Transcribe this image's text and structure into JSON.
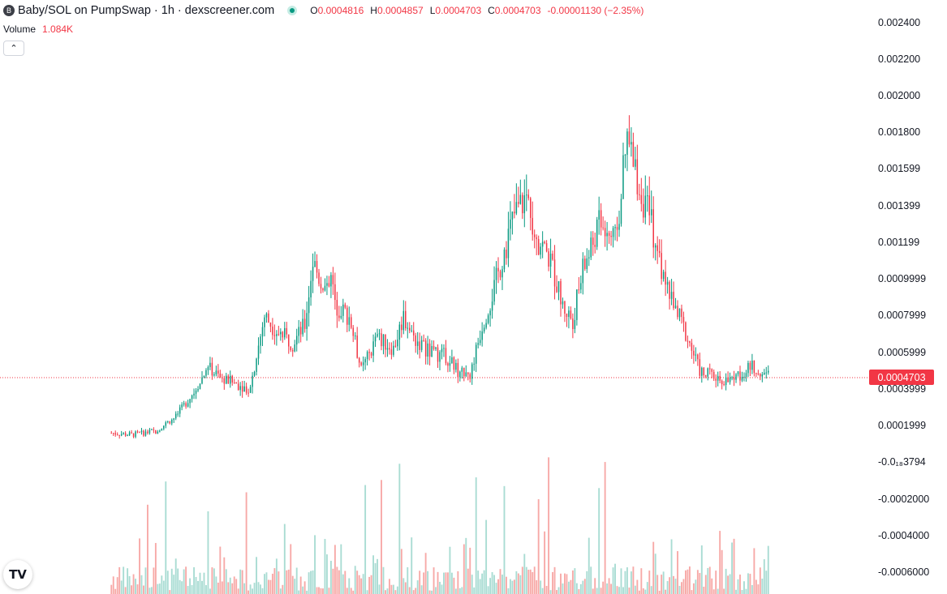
{
  "header": {
    "logo_letter": "B",
    "title": "Baby/SOL on PumpSwap · 1h · dexscreener.com",
    "ohlc": {
      "open_key": "O",
      "open": "0.0004816",
      "high_key": "H",
      "high": "0.0004857",
      "low_key": "L",
      "low": "0.0004703",
      "close_key": "C",
      "close": "0.0004703",
      "change": "-0.00001130 (−2.35%)"
    }
  },
  "volume": {
    "label": "Volume",
    "value": "1.084K"
  },
  "collapse_button": {
    "icon": "chevron-up-icon",
    "glyph": "⌃"
  },
  "price_axis": {
    "labels": [
      "0.002400",
      "0.002200",
      "0.002000",
      "0.001800",
      "0.001599",
      "0.001399",
      "0.001199",
      "0.0009999",
      "0.0007999",
      "0.0005999",
      "0.0003999",
      "0.0001999",
      "-0.0₁₈3794",
      "-0.0002000",
      "-0.0004000",
      "-0.0006000"
    ]
  },
  "current_price": {
    "value": "0.0004703",
    "color": "#f23645"
  },
  "tradingview_logo": {
    "text": "TV"
  },
  "colors": {
    "up": "#089981",
    "down": "#f23645",
    "volume_up": "#a9dcd3",
    "volume_down": "#f7a9a7"
  },
  "chart_data": {
    "type": "candlestick",
    "y_unit": "SOL",
    "ylim": [
      -0.0006,
      0.0024
    ],
    "bars": 280,
    "close_anchors": [
      [
        0,
        0.00016
      ],
      [
        10,
        0.00015
      ],
      [
        22,
        0.00017
      ],
      [
        32,
        0.00025
      ],
      [
        42,
        0.0004
      ],
      [
        48,
        0.00052
      ],
      [
        54,
        0.00046
      ],
      [
        62,
        0.00043
      ],
      [
        68,
        0.0004
      ],
      [
        70,
        0.00047
      ],
      [
        76,
        0.0008
      ],
      [
        82,
        0.00072
      ],
      [
        90,
        0.00065
      ],
      [
        96,
        0.00075
      ],
      [
        100,
        0.0011
      ],
      [
        104,
        0.00098
      ],
      [
        109,
        0.001
      ],
      [
        112,
        0.00085
      ],
      [
        118,
        0.0008
      ],
      [
        124,
        0.0005
      ],
      [
        132,
        0.00068
      ],
      [
        140,
        0.00062
      ],
      [
        145,
        0.0008
      ],
      [
        150,
        0.00068
      ],
      [
        158,
        0.0006
      ],
      [
        166,
        0.00058
      ],
      [
        172,
        0.0005
      ],
      [
        178,
        0.00048
      ],
      [
        184,
        0.00075
      ],
      [
        190,
        0.00095
      ],
      [
        196,
        0.0012
      ],
      [
        200,
        0.00135
      ],
      [
        206,
        0.00145
      ],
      [
        212,
        0.00122
      ],
      [
        218,
        0.0011
      ],
      [
        224,
        0.00085
      ],
      [
        229,
        0.00078
      ],
      [
        234,
        0.00105
      ],
      [
        242,
        0.0013
      ],
      [
        250,
        0.0012
      ],
      [
        256,
        0.00175
      ],
      [
        262,
        0.0015
      ],
      [
        268,
        0.0013
      ],
      [
        274,
        0.001
      ],
      [
        280,
        0.00085
      ]
    ],
    "note_tail_bars": [
      [
        280,
        0.00072
      ],
      [
        292,
        0.0005
      ],
      [
        306,
        0.00044
      ],
      [
        318,
        0.00052
      ],
      [
        326,
        0.00048
      ]
    ]
  }
}
